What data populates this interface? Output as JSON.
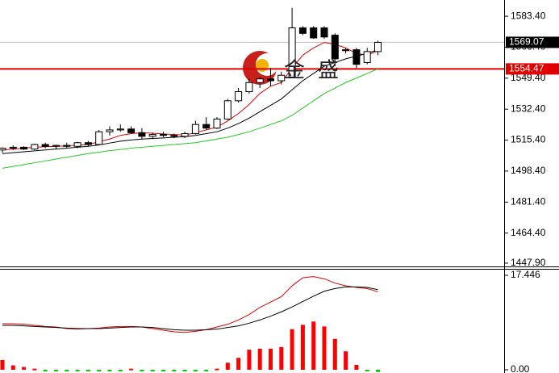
{
  "chart_data": [
    {
      "type": "candlestick",
      "open": [
        1510,
        1511,
        1511.5,
        1510.5,
        1513,
        1512,
        1512.5,
        1512,
        1514,
        1513,
        1520,
        1521,
        1521.5,
        1519.5,
        1517.5,
        1518.5,
        1518,
        1517.5,
        1519,
        1524,
        1522,
        1527,
        1537,
        1542,
        1547,
        1549,
        1548,
        1550,
        1577,
        1577,
        1577,
        1573,
        1565,
        1565,
        1558,
        1564
      ],
      "high": [
        1511.5,
        1512.5,
        1512,
        1513.5,
        1514,
        1513,
        1514,
        1514.5,
        1515,
        1521,
        1523,
        1524,
        1523,
        1522,
        1519.5,
        1520,
        1519,
        1520,
        1526,
        1528,
        1528,
        1538,
        1544,
        1549,
        1550,
        1555,
        1553,
        1588,
        1578,
        1578,
        1578,
        1574,
        1566,
        1566,
        1566,
        1570
      ],
      "low": [
        1508.5,
        1510,
        1510,
        1510,
        1511,
        1510.5,
        1511,
        1511,
        1512,
        1512.5,
        1518,
        1520,
        1519,
        1516,
        1516,
        1517,
        1516.5,
        1516.5,
        1518.5,
        1521,
        1521.5,
        1526.5,
        1536,
        1541,
        1544,
        1545,
        1546,
        1550,
        1573,
        1571,
        1571,
        1556,
        1563,
        1555,
        1557,
        1562
      ],
      "close": [
        1511,
        1511.5,
        1510.5,
        1513,
        1512,
        1512.5,
        1512,
        1514,
        1513,
        1520,
        1521,
        1521.5,
        1519.5,
        1517.5,
        1518.5,
        1518,
        1517.5,
        1519,
        1524,
        1522,
        1527,
        1537,
        1542,
        1547,
        1549,
        1548,
        1551,
        1577,
        1574,
        1571.5,
        1572,
        1560,
        1564.5,
        1557,
        1564,
        1569.07
      ],
      "up_color": "#ffffff",
      "down_color": "#000000",
      "series": [
        {
          "color": "#e00000",
          "values": [
            1510,
            1510.5,
            1511,
            1511.5,
            1511.8,
            1512,
            1512.3,
            1512.6,
            1513,
            1514.5,
            1516,
            1518,
            1519,
            1519.5,
            1519.2,
            1518.8,
            1518.5,
            1518.2,
            1519.5,
            1521,
            1522.5,
            1526,
            1530,
            1535,
            1541,
            1545,
            1547,
            1555,
            1562,
            1566,
            1569,
            1568,
            1566,
            1563,
            1562,
            1564.5
          ]
        },
        {
          "color": "#000000",
          "values": [
            1508,
            1508.5,
            1509,
            1509.5,
            1510,
            1510.5,
            1511,
            1511.5,
            1512,
            1512.8,
            1513.8,
            1514.8,
            1515.5,
            1516,
            1516.3,
            1516.6,
            1517,
            1517.3,
            1518,
            1519,
            1520,
            1522,
            1524.5,
            1527.5,
            1531,
            1534.5,
            1538,
            1543,
            1548,
            1552,
            1556,
            1558,
            1560,
            1561.5,
            1563,
            1565
          ]
        },
        {
          "color": "#22cc22",
          "values": [
            1500,
            1501,
            1502,
            1503,
            1504,
            1505,
            1506,
            1507,
            1508,
            1508.8,
            1509.6,
            1510.3,
            1511,
            1511.5,
            1512,
            1512.5,
            1513,
            1513.5,
            1514,
            1515,
            1516,
            1517,
            1518.5,
            1520,
            1522,
            1524,
            1526,
            1529,
            1533,
            1537,
            1541,
            1544,
            1547,
            1549.5,
            1552,
            1554.5
          ]
        }
      ],
      "ylim": [
        1446.1,
        1592.3
      ],
      "yticks": [
        {
          "value": 1583.4,
          "label": "1583.40"
        },
        {
          "value": 1566.4,
          "label": "1566.40"
        },
        {
          "value": 1549.4,
          "label": "1549.40"
        },
        {
          "value": 1532.4,
          "label": "1532.40"
        },
        {
          "value": 1515.4,
          "label": "1515.40"
        },
        {
          "value": 1498.4,
          "label": "1498.40"
        },
        {
          "value": 1481.4,
          "label": "1481.40"
        },
        {
          "value": 1464.4,
          "label": "1464.40"
        },
        {
          "value": 1447.9,
          "label": "1447.90"
        }
      ],
      "price_markers": [
        {
          "value": 1569.07,
          "color": "#000000",
          "line_color": "#c0c0c0"
        },
        {
          "value": 1554.47,
          "color": "#e00000",
          "line_color": "#e00000"
        }
      ],
      "watermark": [
        "金",
        "盛"
      ]
    },
    {
      "type": "macd",
      "values": [
        1.8,
        0.8,
        0.5,
        0.2,
        -0.3,
        -0.3,
        -0.3,
        -0.3,
        -0.3,
        -0.3,
        -0.3,
        -0.3,
        0.2,
        -0.3,
        -0.3,
        -0.3,
        -0.3,
        -0.3,
        -0.3,
        -0.3,
        0.2,
        1.3,
        2.2,
        3.7,
        3.9,
        3.9,
        4.2,
        7.5,
        8.3,
        8.9,
        8.0,
        5.7,
        3.4,
        0.9,
        -0.3,
        -0.4
      ],
      "up_color": "#ff0000",
      "down_color": "#00cc00",
      "series": [
        {
          "color": "#e00000",
          "values": [
            8.5,
            8.5,
            8.4,
            8.2,
            8.0,
            7.9,
            7.6,
            7.5,
            7.6,
            7.7,
            7.9,
            8.0,
            8.0,
            7.9,
            7.6,
            7.3,
            7.0,
            6.9,
            7.1,
            7.4,
            7.9,
            8.4,
            9.2,
            10.2,
            11.5,
            12.5,
            13.5,
            15.5,
            17.0,
            17.2,
            16.8,
            16.0,
            15.5,
            15.2,
            15.0,
            14.4
          ]
        },
        {
          "color": "#000000",
          "values": [
            8.2,
            8.2,
            8.1,
            8.0,
            7.9,
            7.8,
            7.7,
            7.6,
            7.6,
            7.6,
            7.7,
            7.8,
            7.9,
            7.9,
            7.8,
            7.6,
            7.4,
            7.3,
            7.3,
            7.4,
            7.5,
            7.8,
            8.1,
            8.6,
            9.2,
            9.9,
            10.7,
            11.6,
            12.6,
            13.6,
            14.5,
            15.0,
            15.3,
            15.3,
            15.2,
            14.8
          ]
        }
      ],
      "ylim": [
        -0.6,
        18.34
      ],
      "yticks": [
        17.446,
        {
          "value": 0,
          "label": "0.00"
        }
      ]
    }
  ]
}
